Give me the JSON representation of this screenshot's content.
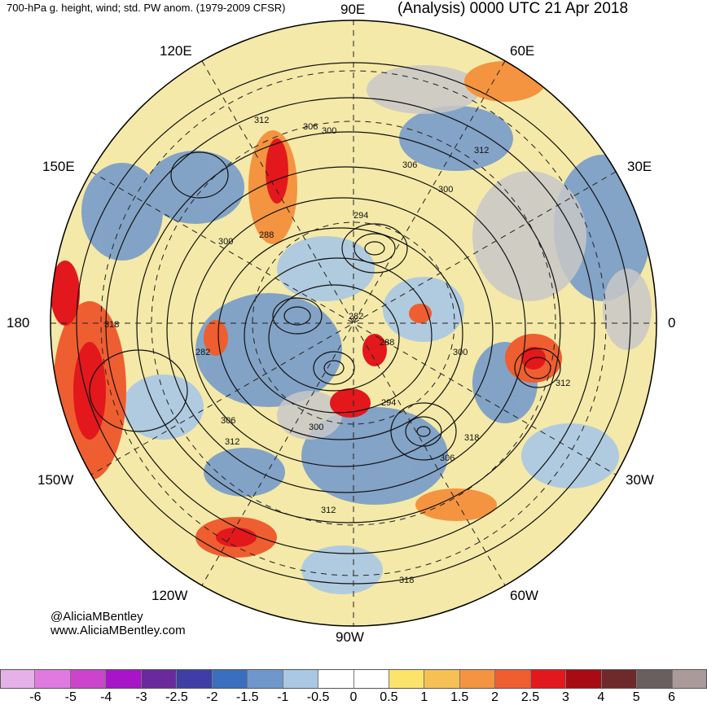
{
  "header": {
    "left": "700-hPa g. height, wind; std. PW anom. (1979-2009 CFSR)",
    "right": "(Analysis) 0000 UTC 21 Apr 2018"
  },
  "longitudes": {
    "n90e": "90E",
    "n120e": "120E",
    "n60e": "60E",
    "n150e": "150E",
    "n30e": "30E",
    "n180": "180",
    "n0": "0",
    "n150w": "150W",
    "n30w": "30W",
    "n120w": "120W",
    "n60w": "60W",
    "n90w": "90W"
  },
  "contour_labels": [
    "312",
    "306",
    "300",
    "306",
    "312",
    "300",
    "294",
    "288",
    "300",
    "282",
    "318",
    "282",
    "288",
    "300",
    "294",
    "306",
    "312",
    "300",
    "306",
    "318",
    "312",
    "318",
    "312"
  ],
  "credits": {
    "handle": "@AliciaMBentley",
    "site": "www.AliciaMBentley.com"
  },
  "colorbar": {
    "ticks": [
      "-6",
      "-5",
      "-4",
      "-3",
      "-2.5",
      "-2",
      "-1.5",
      "-1",
      "-0.5",
      "0",
      "0.5",
      "1",
      "1.5",
      "2",
      "2.5",
      "3",
      "4",
      "5",
      "6"
    ],
    "colors": [
      "#e6b0e8",
      "#e07ae0",
      "#cc44cc",
      "#a815c8",
      "#6a2a9e",
      "#3e3ea6",
      "#3a6fc0",
      "#6f97cc",
      "#a9c8e4",
      "#ffffff",
      "#ffffff",
      "#fce36a",
      "#f6c055",
      "#f49440",
      "#ef5e30",
      "#e3181c",
      "#a80b13",
      "#6e2a2a",
      "#6a5f5f",
      "#aa9a9a"
    ]
  }
}
